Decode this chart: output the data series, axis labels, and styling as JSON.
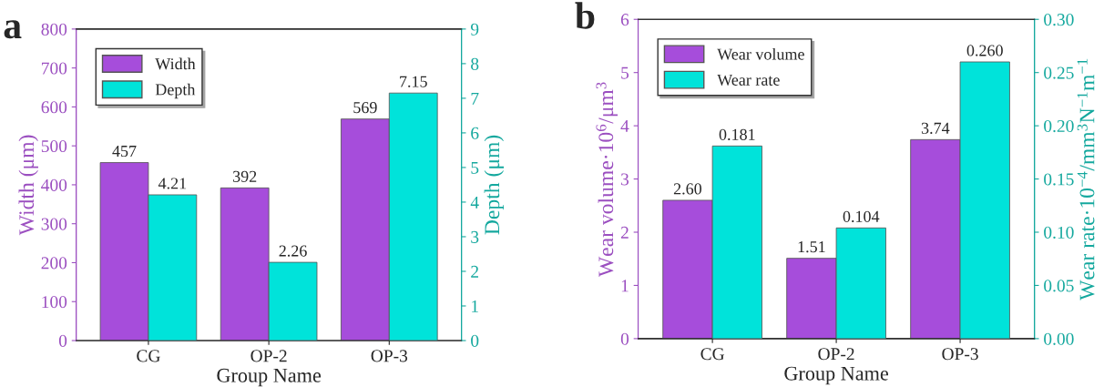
{
  "chart_data": [
    {
      "type": "bar",
      "title": "a",
      "categories": [
        "CG",
        "OP-2",
        "OP-3"
      ],
      "xlabel": "Group Name",
      "ylabel": "Width (μm)",
      "y2label": "Depth (μm)",
      "series": [
        {
          "name": "Width",
          "color": "#a64ddb",
          "values": [
            457,
            392,
            569
          ],
          "value_labels": [
            "457",
            "392",
            "569"
          ],
          "axis": "y"
        },
        {
          "name": "Depth",
          "color": "#00e3da",
          "values": [
            4.21,
            2.26,
            7.15
          ],
          "value_labels": [
            "4.21",
            "2.26",
            "7.15"
          ],
          "axis": "y2"
        }
      ],
      "ylim": [
        0,
        800
      ],
      "yticks": [
        0,
        100,
        200,
        300,
        400,
        500,
        600,
        700,
        800
      ],
      "y2lim": [
        0,
        9
      ],
      "y2ticks": [
        0,
        1,
        2,
        3,
        4,
        5,
        6,
        7,
        8,
        9
      ],
      "legend": "top left",
      "grid": false
    },
    {
      "type": "bar",
      "title": "b",
      "categories": [
        "CG",
        "OP-2",
        "OP-3"
      ],
      "xlabel": "Group Name",
      "ylabel": "Wear volume·10$^{6}$/μm$^{3}$",
      "y2label": "Wear rate·10$^{−4}$/mm$^{3}$N$^{−1}$m$^{−1}$",
      "series": [
        {
          "name": "Wear volume",
          "color": "#a64ddb",
          "values": [
            2.6,
            1.51,
            3.74
          ],
          "value_labels": [
            "2.60",
            "1.51",
            "3.74"
          ],
          "axis": "y"
        },
        {
          "name": "Wear rate",
          "color": "#00e3da",
          "values": [
            0.181,
            0.104,
            0.26
          ],
          "value_labels": [
            "0.181",
            "0.104",
            "0.260"
          ],
          "axis": "y2"
        }
      ],
      "ylim": [
        0,
        6
      ],
      "yticks": [
        0,
        1,
        2,
        3,
        4,
        5,
        6
      ],
      "y2lim": [
        0,
        0.3
      ],
      "y2ticks": [
        {
          "value": 0,
          "label": "0.00"
        },
        {
          "value": 0.05,
          "label": "0.05"
        },
        {
          "value": 0.1,
          "label": "0.10"
        },
        {
          "value": 0.15,
          "label": "0.15"
        },
        {
          "value": 0.2,
          "label": "0.20"
        },
        {
          "value": 0.25,
          "label": "0.25"
        },
        {
          "value": 0.3,
          "label": "0.30"
        }
      ],
      "legend": "top left",
      "grid": false
    }
  ]
}
